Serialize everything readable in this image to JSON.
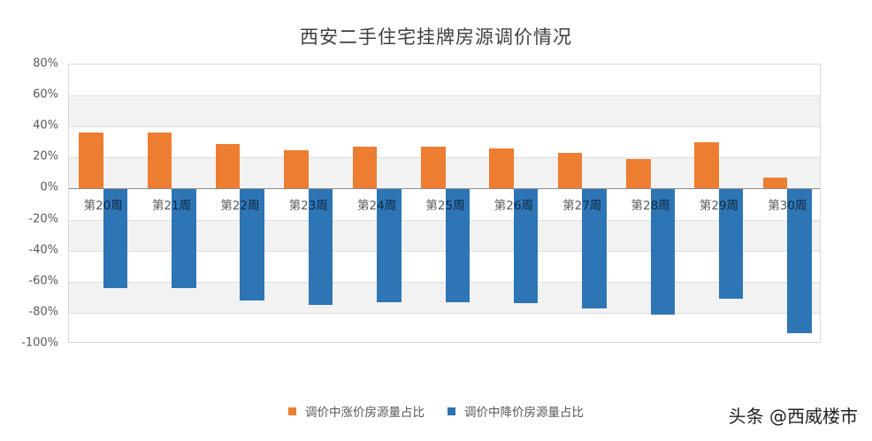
{
  "title": "西安二手住宅挂牌房源调价情况",
  "watermark": "头条 @西威楼市",
  "colors": {
    "up": "#ed7d31",
    "down": "#2e75b6",
    "band": "#f2f2f2",
    "grid": "#dedede",
    "label": "#595959"
  },
  "legend": [
    {
      "label": "调价中涨价房源量占比",
      "color": "#ed7d31"
    },
    {
      "label": "调价中降价房源量占比",
      "color": "#2e75b6"
    }
  ],
  "y_ticks": [
    "80%",
    "60%",
    "40%",
    "20%",
    "0%",
    "-20%",
    "-40%",
    "-60%",
    "-80%",
    "-100%"
  ],
  "chart_data": {
    "type": "bar",
    "title": "西安二手住宅挂牌房源调价情况",
    "xlabel": "",
    "ylabel": "",
    "categories": [
      "第20周",
      "第21周",
      "第22周",
      "第23周",
      "第24周",
      "第25周",
      "第26周",
      "第27周",
      "第28周",
      "第29周",
      "第30周"
    ],
    "series": [
      {
        "name": "调价中涨价房源量占比",
        "color": "#ed7d31",
        "values": [
          36,
          36,
          29,
          25,
          27,
          27,
          26,
          23,
          19,
          30,
          7
        ]
      },
      {
        "name": "调价中降价房源量占比",
        "color": "#2e75b6",
        "values": [
          -64,
          -64,
          -72,
          -75,
          -73,
          -73,
          -74,
          -77,
          -81,
          -71,
          -93
        ]
      }
    ],
    "ylim": [
      -100,
      80
    ],
    "y_tick_step": 20,
    "y_format": "percent",
    "grid": true,
    "alternating_bands": true,
    "legend_position": "bottom"
  }
}
